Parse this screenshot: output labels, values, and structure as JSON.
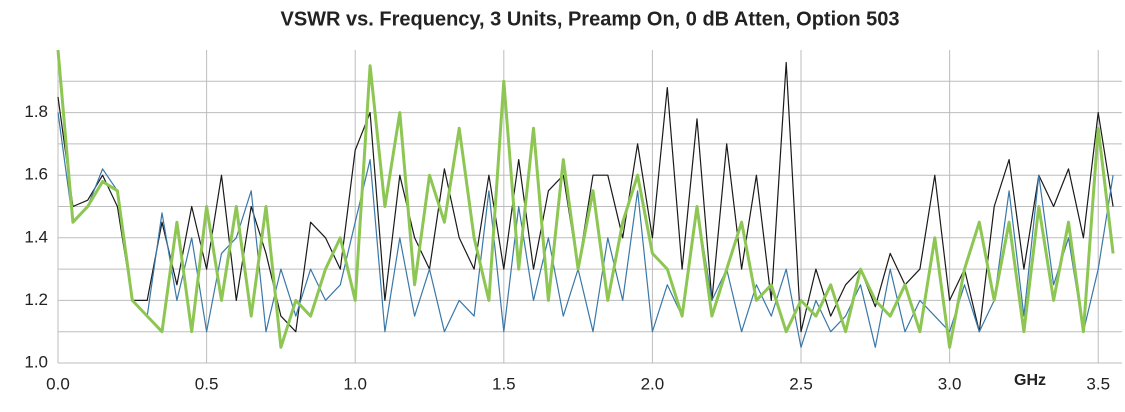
{
  "chart_data": {
    "type": "line",
    "title": "VSWR vs. Frequency, 3 Units, Preamp On, 0 dB Atten, Option 503",
    "xlabel": "GHz",
    "x": [
      0,
      0.05,
      0.1,
      0.15,
      0.2,
      0.25,
      0.3,
      0.35,
      0.4,
      0.45,
      0.5,
      0.55,
      0.6,
      0.65,
      0.7,
      0.75,
      0.8,
      0.85,
      0.9,
      0.95,
      1.0,
      1.05,
      1.1,
      1.15,
      1.2,
      1.25,
      1.3,
      1.35,
      1.4,
      1.45,
      1.5,
      1.55,
      1.6,
      1.65,
      1.7,
      1.75,
      1.8,
      1.85,
      1.9,
      1.95,
      2.0,
      2.05,
      2.1,
      2.15,
      2.2,
      2.25,
      2.3,
      2.35,
      2.4,
      2.45,
      2.5,
      2.55,
      2.6,
      2.65,
      2.7,
      2.75,
      2.8,
      2.85,
      2.9,
      2.95,
      3.0,
      3.05,
      3.1,
      3.15,
      3.2,
      3.25,
      3.3,
      3.35,
      3.4,
      3.45,
      3.5,
      3.55
    ],
    "series": [
      {
        "color": "#1a1a1a",
        "width": 1.2,
        "values": [
          1.85,
          1.5,
          1.52,
          1.6,
          1.5,
          1.2,
          1.2,
          1.45,
          1.25,
          1.5,
          1.3,
          1.6,
          1.2,
          1.5,
          1.35,
          1.15,
          1.1,
          1.45,
          1.4,
          1.3,
          1.68,
          1.8,
          1.2,
          1.6,
          1.4,
          1.3,
          1.62,
          1.4,
          1.3,
          1.6,
          1.3,
          1.65,
          1.3,
          1.55,
          1.6,
          1.3,
          1.6,
          1.6,
          1.4,
          1.7,
          1.4,
          1.88,
          1.3,
          1.78,
          1.2,
          1.7,
          1.3,
          1.6,
          1.2,
          1.96,
          1.1,
          1.3,
          1.15,
          1.25,
          1.3,
          1.18,
          1.35,
          1.25,
          1.3,
          1.6,
          1.2,
          1.3,
          1.1,
          1.5,
          1.65,
          1.3,
          1.6,
          1.5,
          1.62,
          1.4,
          1.8,
          1.5
        ]
      },
      {
        "color": "#3a78a8",
        "width": 1.2,
        "values": [
          1.8,
          1.45,
          1.5,
          1.62,
          1.55,
          1.2,
          1.15,
          1.48,
          1.2,
          1.4,
          1.1,
          1.35,
          1.4,
          1.55,
          1.1,
          1.3,
          1.15,
          1.3,
          1.2,
          1.25,
          1.45,
          1.65,
          1.1,
          1.4,
          1.15,
          1.3,
          1.1,
          1.2,
          1.15,
          1.55,
          1.1,
          1.5,
          1.2,
          1.4,
          1.15,
          1.3,
          1.1,
          1.4,
          1.2,
          1.55,
          1.1,
          1.25,
          1.15,
          1.5,
          1.2,
          1.3,
          1.1,
          1.25,
          1.15,
          1.3,
          1.05,
          1.2,
          1.1,
          1.15,
          1.25,
          1.05,
          1.3,
          1.1,
          1.2,
          1.15,
          1.1,
          1.25,
          1.1,
          1.2,
          1.55,
          1.15,
          1.6,
          1.25,
          1.4,
          1.1,
          1.3,
          1.6
        ]
      },
      {
        "color": "#8dc653",
        "width": 3,
        "values": [
          2.0,
          1.45,
          1.5,
          1.58,
          1.55,
          1.2,
          1.15,
          1.1,
          1.45,
          1.1,
          1.5,
          1.2,
          1.5,
          1.15,
          1.5,
          1.05,
          1.2,
          1.15,
          1.3,
          1.4,
          1.2,
          1.95,
          1.5,
          1.8,
          1.25,
          1.6,
          1.45,
          1.75,
          1.4,
          1.2,
          1.9,
          1.3,
          1.75,
          1.2,
          1.65,
          1.3,
          1.55,
          1.2,
          1.45,
          1.6,
          1.35,
          1.3,
          1.15,
          1.5,
          1.15,
          1.3,
          1.45,
          1.2,
          1.25,
          1.1,
          1.2,
          1.15,
          1.25,
          1.1,
          1.3,
          1.2,
          1.15,
          1.25,
          1.1,
          1.4,
          1.05,
          1.3,
          1.45,
          1.2,
          1.45,
          1.1,
          1.5,
          1.2,
          1.45,
          1.1,
          1.75,
          1.35
        ]
      }
    ],
    "xlim": [
      0,
      3.58
    ],
    "xticks": [
      {
        "value": 0,
        "label": "0.0"
      },
      0.5,
      {
        "value": 1,
        "label": "1.0"
      },
      1.5,
      {
        "value": 2,
        "label": "2.0"
      },
      2.5,
      {
        "value": 3,
        "label": "3.0"
      },
      3.5
    ],
    "ylim": [
      1.0,
      2.0
    ],
    "yticks": [
      {
        "value": 1,
        "label": "1.0"
      },
      1.2,
      1.4,
      1.6,
      1.8
    ],
    "minor_yticks": [
      1.1,
      1.3,
      1.5,
      1.7,
      1.9
    ],
    "grid": true
  }
}
